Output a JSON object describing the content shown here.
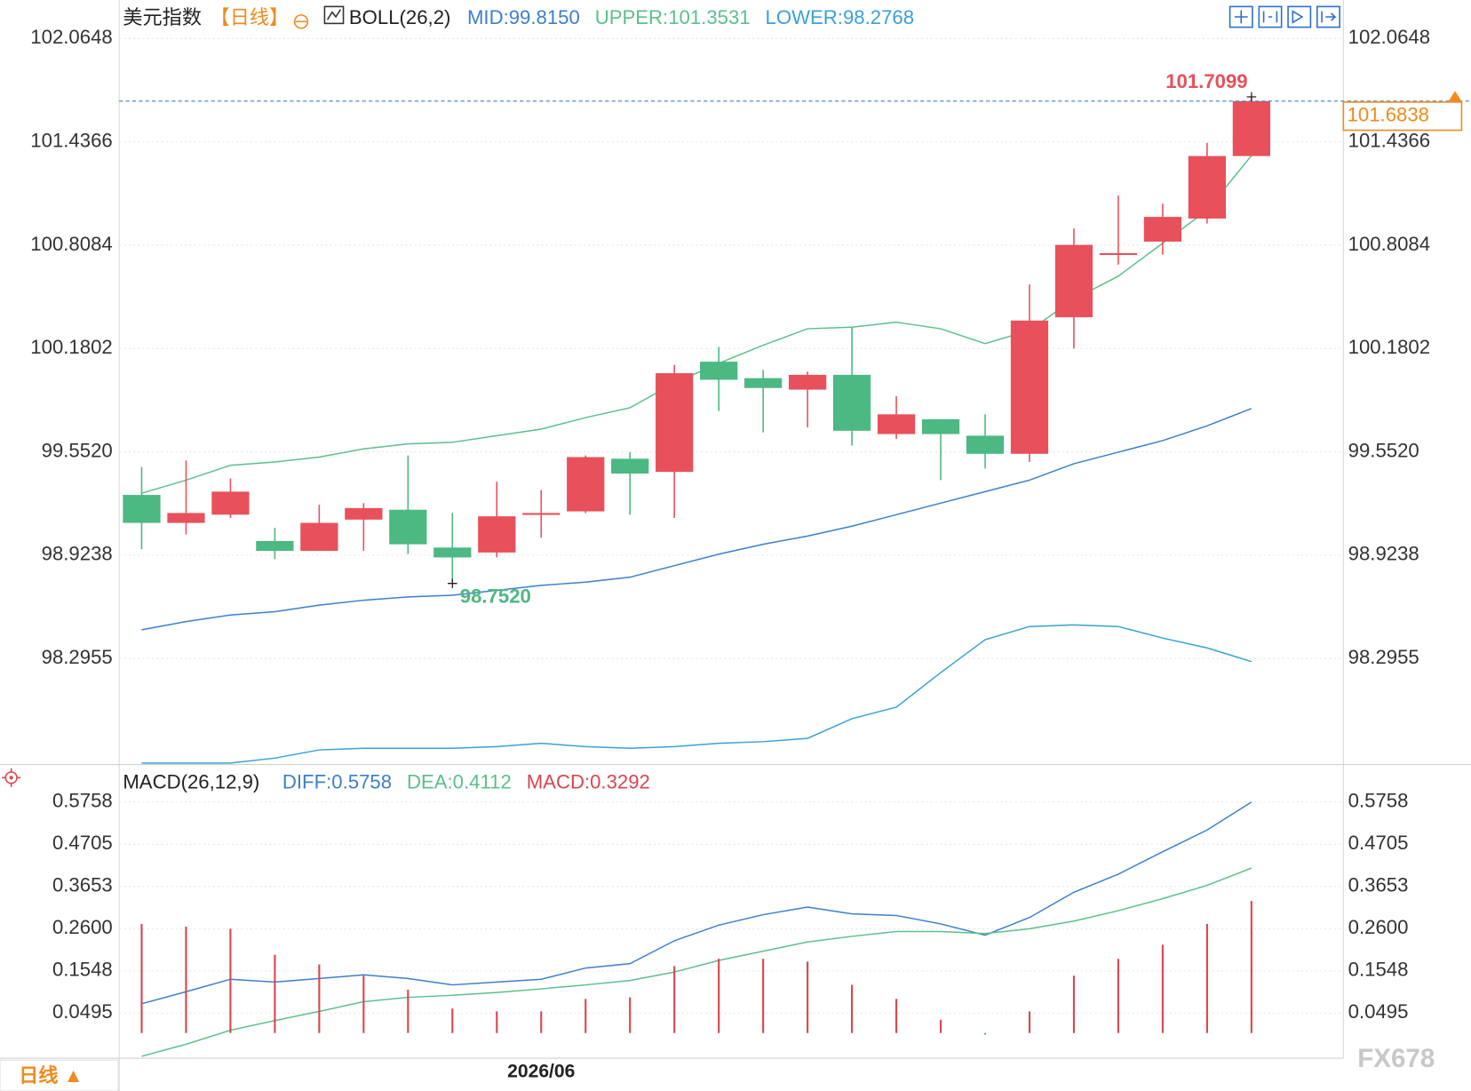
{
  "chart_data": [
    {
      "type": "candlestick",
      "title": "美元指数",
      "period": "【日线】",
      "indicator": "BOLL(26,2)",
      "categories": [
        null,
        null,
        null,
        null,
        null,
        null,
        null,
        null,
        null,
        "2026/06",
        null,
        null,
        null,
        null,
        null,
        null,
        null,
        null,
        null,
        null,
        null,
        null,
        null,
        null,
        null,
        null
      ],
      "open": [
        99.29,
        99.12,
        99.17,
        99.01,
        98.95,
        99.14,
        99.2,
        98.97,
        98.94,
        99.17,
        99.19,
        99.51,
        99.43,
        100.1,
        100.0,
        99.93,
        100.02,
        99.66,
        99.75,
        99.65,
        99.54,
        100.37,
        100.75,
        100.83,
        100.97,
        101.35
      ],
      "high": [
        99.46,
        99.5,
        99.39,
        99.09,
        99.23,
        99.24,
        99.53,
        99.18,
        99.37,
        99.32,
        99.53,
        99.55,
        100.08,
        100.19,
        100.05,
        100.04,
        100.31,
        99.89,
        99.75,
        99.78,
        100.57,
        100.91,
        101.11,
        101.06,
        101.43,
        101.7099
      ],
      "low": [
        98.96,
        99.05,
        99.15,
        98.9,
        98.95,
        98.95,
        98.93,
        98.752,
        98.91,
        99.03,
        99.18,
        99.17,
        99.15,
        99.8,
        99.67,
        99.7,
        99.59,
        99.63,
        99.38,
        99.45,
        99.49,
        100.18,
        100.69,
        100.75,
        100.94,
        101.35
      ],
      "close": [
        99.12,
        99.18,
        99.31,
        98.95,
        99.12,
        99.21,
        98.99,
        98.91,
        99.16,
        99.18,
        99.52,
        99.42,
        100.03,
        99.99,
        99.94,
        100.02,
        99.68,
        99.78,
        99.66,
        99.54,
        100.35,
        100.81,
        100.76,
        100.98,
        101.35,
        101.6838
      ],
      "up_color": "#e8505b",
      "down_color": "#4cb882",
      "series": [
        {
          "name": "MID:99.8150",
          "color": "#3d7fc9",
          "values": [
            98.47,
            98.52,
            98.56,
            98.58,
            98.62,
            98.65,
            98.67,
            98.68,
            98.71,
            98.74,
            98.76,
            98.79,
            98.86,
            98.93,
            98.99,
            99.04,
            99.1,
            99.17,
            99.24,
            99.31,
            99.38,
            99.48,
            99.55,
            99.62,
            99.71,
            99.815
          ]
        },
        {
          "name": "UPPER:101.3531",
          "color": "#5cbf8a",
          "values": [
            99.3,
            99.38,
            99.47,
            99.49,
            99.52,
            99.57,
            99.6,
            99.61,
            99.65,
            99.69,
            99.76,
            99.82,
            99.97,
            100.09,
            100.2,
            100.3,
            100.31,
            100.34,
            100.3,
            100.21,
            100.29,
            100.48,
            100.62,
            100.82,
            101.02,
            101.3531
          ]
        },
        {
          "name": "LOWER:98.2768",
          "color": "#3ba0d6",
          "values": [
            97.66,
            97.66,
            97.66,
            97.69,
            97.74,
            97.75,
            97.75,
            97.75,
            97.76,
            97.78,
            97.76,
            97.75,
            97.76,
            97.78,
            97.79,
            97.81,
            97.93,
            98.0,
            98.21,
            98.41,
            98.49,
            98.5,
            98.49,
            98.42,
            98.36,
            98.2768
          ]
        }
      ],
      "annotations": [
        {
          "value": 98.752,
          "label": "98.7520"
        }
      ],
      "ylim": [
        97.651,
        102.253
      ],
      "yticks": [
        102.0648,
        101.4366,
        100.8084,
        100.1802,
        {
          "value": 99.552,
          "label": "99.5520"
        },
        98.9238,
        98.2955
      ],
      "grid": true,
      "period_button": "日线 ▲",
      "watermark": "FX678"
    },
    {
      "type": "macd",
      "title": "MACD(26,12,9)",
      "series": [
        {
          "name": "DIFF:0.5758",
          "color": "#3d7fc9",
          "style": "line",
          "values": [
            0.073,
            0.103,
            0.134,
            0.127,
            0.136,
            0.145,
            0.136,
            0.12,
            0.127,
            0.134,
            0.162,
            0.173,
            0.23,
            0.269,
            0.295,
            0.314,
            0.297,
            0.293,
            0.272,
            0.244,
            0.288,
            0.351,
            0.396,
            0.452,
            0.506,
            0.5758
          ]
        },
        {
          "name": "DEA:0.4112",
          "color": "#5cbf8a",
          "style": "line",
          "values": [
            -0.058,
            -0.028,
            0.007,
            0.031,
            0.054,
            0.078,
            0.089,
            0.094,
            0.101,
            0.11,
            0.12,
            0.131,
            0.152,
            0.181,
            0.204,
            0.227,
            0.241,
            0.253,
            0.253,
            0.248,
            0.26,
            0.279,
            0.305,
            0.335,
            0.368,
            0.4112
          ]
        },
        {
          "name": "MACD:0.3292",
          "color": "#d9464f",
          "down_color": "#3cb07a",
          "style": "bar",
          "values": [
            0.272,
            0.265,
            0.26,
            0.195,
            0.171,
            0.143,
            0.108,
            0.061,
            0.054,
            0.054,
            0.085,
            0.089,
            0.167,
            0.185,
            0.185,
            0.178,
            0.12,
            0.085,
            0.033,
            -0.004,
            0.054,
            0.143,
            0.185,
            0.22,
            0.272,
            0.3292
          ]
        }
      ],
      "ylim": [
        -0.0627,
        0.6623
      ],
      "yticks": [
        0.5758,
        0.4705,
        0.3653,
        {
          "value": 0.26,
          "label": "0.2600"
        },
        0.1548,
        0.0495
      ],
      "grid": true
    }
  ]
}
